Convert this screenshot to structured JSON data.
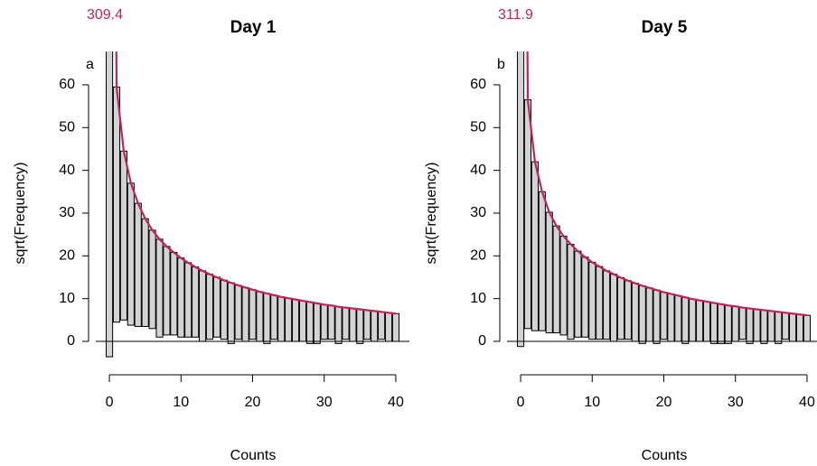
{
  "chart_data": [
    {
      "type": "rootogram",
      "title": "Day 1",
      "panel_label": "a",
      "xlabel": "Counts",
      "ylabel": "sqrt(Frequency)",
      "x": [
        0,
        1,
        2,
        3,
        4,
        5,
        6,
        7,
        8,
        9,
        10,
        11,
        12,
        13,
        14,
        15,
        16,
        17,
        18,
        19,
        20,
        21,
        22,
        23,
        24,
        25,
        26,
        27,
        28,
        29,
        30,
        31,
        32,
        33,
        34,
        35,
        36,
        37,
        38,
        39,
        40
      ],
      "fitted": [
        309.4,
        59.5,
        44.5,
        37,
        32.3,
        28.7,
        26,
        23.9,
        22.2,
        20.8,
        19.5,
        18.4,
        17.4,
        16.5,
        15.7,
        15,
        14.3,
        13.7,
        13.1,
        12.6,
        12.1,
        11.6,
        11.2,
        10.8,
        10.4,
        10.1,
        9.8,
        9.5,
        9.2,
        8.9,
        8.6,
        8.4,
        8.1,
        7.9,
        7.7,
        7.5,
        7.3,
        7.1,
        6.9,
        6.7,
        6.5
      ],
      "observed": [
        313,
        55,
        39.5,
        33.2,
        28.8,
        25.2,
        23,
        22.9,
        20.7,
        19.3,
        18.5,
        17.4,
        16.4,
        16.5,
        15.2,
        14,
        13.8,
        14.2,
        12.6,
        12.6,
        11.6,
        11.6,
        11.7,
        10.3,
        10.4,
        10.1,
        9.8,
        9.5,
        9.7,
        9.4,
        8.1,
        7.9,
        8.6,
        7.4,
        7.7,
        8,
        6.8,
        7.1,
        6.4,
        6.7,
        6.5
      ],
      "bar_color": "#d3d3d3",
      "curve_color": "#c0245c",
      "xlim": [
        -1.9,
        41.9
      ],
      "ylim": [
        -5.7,
        67.8
      ],
      "xticks": [
        0,
        10,
        20,
        30,
        40
      ],
      "yticks": [
        0,
        10,
        20,
        30,
        40,
        50,
        60
      ]
    },
    {
      "type": "rootogram",
      "title": "Day 5",
      "panel_label": "b",
      "xlabel": "Counts",
      "ylabel": "sqrt(Frequency)",
      "x": [
        0,
        1,
        2,
        3,
        4,
        5,
        6,
        7,
        8,
        9,
        10,
        11,
        12,
        13,
        14,
        15,
        16,
        17,
        18,
        19,
        20,
        21,
        22,
        23,
        24,
        25,
        26,
        27,
        28,
        29,
        30,
        31,
        32,
        33,
        34,
        35,
        36,
        37,
        38,
        39,
        40
      ],
      "fitted": [
        311.9,
        56.5,
        42,
        35,
        30.2,
        27,
        24.6,
        22.7,
        21.1,
        19.7,
        18.5,
        17.5,
        16.5,
        15.7,
        14.9,
        14.2,
        13.6,
        13,
        12.5,
        12,
        11.5,
        11.1,
        10.7,
        10.3,
        9.9,
        9.6,
        9.3,
        9,
        8.7,
        8.4,
        8.2,
        7.9,
        7.7,
        7.5,
        7.3,
        7.1,
        6.9,
        6.7,
        6.5,
        6.3,
        6.1
      ],
      "observed": [
        313.1,
        53.5,
        39.5,
        32.5,
        28.2,
        25,
        23.1,
        22.2,
        20.1,
        18.7,
        18,
        17,
        16,
        15.7,
        14.4,
        13.7,
        13.6,
        13.5,
        12.5,
        12.5,
        11,
        11.1,
        10.7,
        10.8,
        9.9,
        9.6,
        9.3,
        9.5,
        9.2,
        8.9,
        8.2,
        7.4,
        8.2,
        7.5,
        7.8,
        7.1,
        7.4,
        6.2,
        6.5,
        6.3,
        6.1
      ],
      "bar_color": "#d3d3d3",
      "curve_color": "#c0245c",
      "xlim": [
        -1.9,
        41.9
      ],
      "ylim": [
        -5.7,
        67.8
      ],
      "xticks": [
        0,
        10,
        20,
        30,
        40
      ],
      "yticks": [
        0,
        10,
        20,
        30,
        40,
        50,
        60
      ]
    }
  ]
}
